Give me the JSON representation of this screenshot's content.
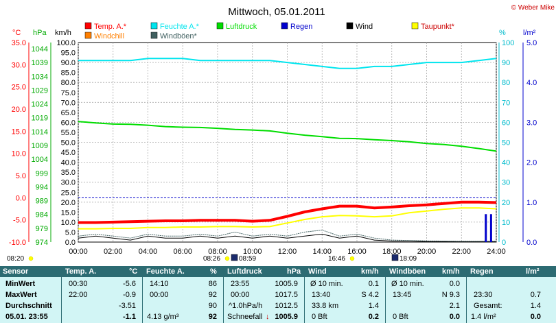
{
  "title": "Mittwoch, 05.01.2011",
  "copyright": "© Weber Mike",
  "colors": {
    "temp": "#ff0000",
    "humidity": "#00e5ee",
    "pressure": "#00dd00",
    "rain": "#0000cc",
    "wind": "#000000",
    "dewpoint": "#ffff00",
    "windchill": "#ff7f00",
    "gusts": "#406060"
  },
  "legend": [
    {
      "label": "Temp. A.*",
      "color": "#ff0000"
    },
    {
      "label": "Feuchte A.*",
      "color": "#00e5ee"
    },
    {
      "label": "Luftdruck",
      "color": "#00dd00"
    },
    {
      "label": "Regen",
      "color": "#0000cc"
    },
    {
      "label": "Wind",
      "color": "#000000"
    },
    {
      "label": "Taupunkt*",
      "color": "#ffff00"
    },
    {
      "label": "Windchill",
      "color": "#ff7f00"
    },
    {
      "label": "Windböen*",
      "color": "#406060"
    }
  ],
  "chart_data": {
    "type": "line",
    "axes": {
      "temp_label": "°C",
      "pressure_label": "hPa",
      "wind_label": "km/h",
      "humidity_label": "%",
      "rain_label": "l/m²",
      "temp_ticks": [
        "35.0",
        "30.0",
        "25.0",
        "20.0",
        "15.0",
        "10.0",
        "5.0",
        "0.0",
        "-5.0",
        "-10.0"
      ],
      "pressure_ticks": [
        "1044",
        "1039",
        "1034",
        "1029",
        "1024",
        "1019",
        "1014",
        "1009",
        "1004",
        "999",
        "994",
        "989",
        "984",
        "979",
        "974"
      ],
      "wind_ticks": [
        "100.0",
        "95.0",
        "90.0",
        "85.0",
        "80.0",
        "75.0",
        "70.0",
        "65.0",
        "60.0",
        "55.0",
        "50.0",
        "45.0",
        "40.0",
        "35.0",
        "30.0",
        "25.0",
        "20.0",
        "15.0",
        "10.0",
        "5.0",
        "0.0"
      ],
      "humidity_ticks": [
        "100",
        "90",
        "80",
        "70",
        "60",
        "50",
        "40",
        "30",
        "20",
        "10",
        "0"
      ],
      "rain_ticks": [
        "5.0",
        "4.0",
        "3.0",
        "2.0",
        "1.0",
        "0.0"
      ],
      "x_ticks": [
        "00:00",
        "02:00",
        "04:00",
        "06:00",
        "08:00",
        "10:00",
        "12:00",
        "14:00",
        "16:00",
        "18:00",
        "20:00",
        "22:00",
        "24:00"
      ],
      "x_range_hours": [
        0,
        24
      ],
      "wind_range": [
        0,
        100
      ],
      "temp_range": [
        -10,
        35
      ],
      "pressure_range": [
        974,
        1044
      ],
      "humidity_range": [
        0,
        100
      ],
      "rain_range": [
        0,
        5
      ]
    },
    "events": [
      {
        "label": "08:20",
        "kind": "sunrise"
      },
      {
        "label": "08:26",
        "kind": "sun"
      },
      {
        "label": "08:59",
        "kind": "moon"
      },
      {
        "label": "16:46",
        "kind": "sun"
      },
      {
        "label": "18:09",
        "kind": "moon"
      }
    ],
    "series": [
      {
        "name": "Feuchte A.*",
        "axis": "humidity",
        "color": "#00e5ee",
        "x": [
          0,
          1,
          2,
          3,
          4,
          5,
          6,
          7,
          8,
          9,
          10,
          11,
          12,
          13,
          14,
          15,
          16,
          17,
          18,
          19,
          20,
          21,
          22,
          23,
          24
        ],
        "y": [
          91,
          91,
          91,
          91,
          92,
          92,
          92,
          91,
          91,
          91,
          91,
          91,
          90,
          89,
          88,
          87,
          87,
          88,
          88,
          89,
          90,
          90,
          90,
          91,
          92
        ]
      },
      {
        "name": "Luftdruck",
        "axis": "pressure",
        "color": "#00dd00",
        "x": [
          0,
          1,
          2,
          3,
          4,
          5,
          6,
          7,
          8,
          9,
          10,
          11,
          12,
          13,
          14,
          15,
          16,
          17,
          18,
          19,
          20,
          21,
          22,
          23,
          24
        ],
        "y": [
          1016.3,
          1015.8,
          1015.4,
          1015.3,
          1015.0,
          1014.5,
          1014.3,
          1014.2,
          1013.9,
          1013.5,
          1013.3,
          1013.0,
          1012.2,
          1011.5,
          1011.0,
          1010.4,
          1010.3,
          1009.9,
          1009.6,
          1009.2,
          1008.6,
          1008.2,
          1007.6,
          1006.8,
          1005.9
        ]
      },
      {
        "name": "Temp. A.*",
        "axis": "temp",
        "color": "#ff0000",
        "x": [
          0,
          1,
          2,
          3,
          4,
          5,
          6,
          7,
          8,
          9,
          10,
          11,
          12,
          13,
          14,
          15,
          16,
          17,
          18,
          19,
          20,
          21,
          22,
          23,
          24
        ],
        "y": [
          -5.6,
          -5.6,
          -5.5,
          -5.4,
          -5.3,
          -5.2,
          -5.2,
          -5.1,
          -5.1,
          -5.1,
          -5.3,
          -5.1,
          -4.2,
          -3.2,
          -2.5,
          -1.9,
          -1.9,
          -2.3,
          -2.1,
          -1.8,
          -1.6,
          -1.3,
          -1.0,
          -1.0,
          -1.1
        ]
      },
      {
        "name": "Taupunkt*",
        "axis": "temp",
        "color": "#ffff00",
        "x": [
          0,
          1,
          2,
          3,
          4,
          5,
          6,
          7,
          8,
          9,
          10,
          11,
          12,
          13,
          14,
          15,
          16,
          17,
          18,
          19,
          20,
          21,
          22,
          23,
          24
        ],
        "y": [
          -7.0,
          -7.0,
          -6.9,
          -6.9,
          -6.7,
          -6.7,
          -6.6,
          -6.6,
          -6.5,
          -6.5,
          -6.6,
          -6.5,
          -5.7,
          -4.9,
          -4.3,
          -4.0,
          -4.1,
          -4.3,
          -4.1,
          -3.4,
          -3.0,
          -2.6,
          -2.3,
          -2.3,
          -2.5
        ]
      },
      {
        "name": "Wind",
        "axis": "wind",
        "color": "#000000",
        "x": [
          0,
          1,
          2,
          3,
          4,
          5,
          6,
          7,
          8,
          9,
          10,
          11,
          12,
          13,
          14,
          15,
          16,
          17,
          18,
          19,
          20,
          21,
          22,
          23,
          24
        ],
        "y": [
          2,
          3,
          2,
          1,
          3,
          2,
          2,
          3,
          2,
          3,
          2,
          3,
          2,
          3,
          4,
          2,
          3,
          1,
          0.5,
          0.5,
          0.3,
          0.3,
          0.2,
          0.2,
          0.2
        ]
      },
      {
        "name": "Windböen*",
        "axis": "wind",
        "color": "#406060",
        "x": [
          0,
          1,
          2,
          3,
          4,
          5,
          6,
          7,
          8,
          9,
          10,
          11,
          12,
          13,
          14,
          15,
          16,
          17,
          18,
          19,
          20,
          21,
          22,
          23,
          24
        ],
        "y": [
          3,
          4,
          3,
          2,
          4,
          3,
          3,
          4,
          3,
          5,
          3,
          4,
          3,
          5,
          6,
          3,
          4,
          2,
          1,
          0.8,
          0.6,
          0.5,
          0.4,
          0.4,
          0.4
        ]
      },
      {
        "name": "Regen",
        "axis": "rain",
        "color": "#0000cc",
        "x": [
          23.4,
          23.7
        ],
        "y": [
          0.7,
          0.7
        ]
      }
    ]
  },
  "table": {
    "headers": {
      "sensor": "Sensor",
      "temp": "Temp. A.",
      "temp_unit": "°C",
      "hum": "Feuchte A.",
      "hum_unit": "%",
      "press": "Luftdruck",
      "press_unit": "hPa",
      "wind": "Wind",
      "wind_unit": "km/h",
      "gust": "Windböen",
      "gust_unit": "km/h",
      "rain": "Regen",
      "rain_unit": "l/m²"
    },
    "rowlabels": {
      "min": "MinWert",
      "max": "MaxWert",
      "avg": "Durchschnitt",
      "now": "05.01. 23:55"
    },
    "temp": {
      "min_t": "00:30",
      "min_v": "-5.6",
      "max_t": "22:00",
      "max_v": "-0.9",
      "avg_v": "-3.51",
      "now_v": "-1.1"
    },
    "hum": {
      "min_t": "14:10",
      "min_v": "86",
      "max_t": "00:00",
      "max_v": "92",
      "avg_v": "90",
      "now_t": "4.13 g/m³",
      "now_v": "92"
    },
    "press": {
      "min_t": "23:55",
      "min_v": "1005.9",
      "max_t": "00:00",
      "max_v": "1017.5",
      "avg_t": "^1.0hPa/h",
      "avg_v": "1012.5",
      "now_t": "Schneefall",
      "now_arrow": "↓",
      "now_v": "1005.9"
    },
    "wind": {
      "r1_t": "Ø 10 min.",
      "r1_v": "0.1",
      "r2_t": "13:40",
      "r2_v": "S 4.2",
      "r3_t": "33.8 km",
      "r3_v": "1.4",
      "r4_t": "0 Bft",
      "r4_v": "0.2"
    },
    "gust": {
      "r1_t": "Ø 10 min.",
      "r1_v": "0.0",
      "r2_t": "13:45",
      "r2_v": "N 9.3",
      "r3_v": "2.1",
      "r4_t": "0 Bft",
      "r4_v": "0.0"
    },
    "rain": {
      "r2_t": "23:30",
      "r2_v": "0.7",
      "r3_t": "Gesamt:",
      "r3_v": "1.4",
      "r4_t": "1.4 l/m²",
      "r4_v": "0.0"
    }
  }
}
